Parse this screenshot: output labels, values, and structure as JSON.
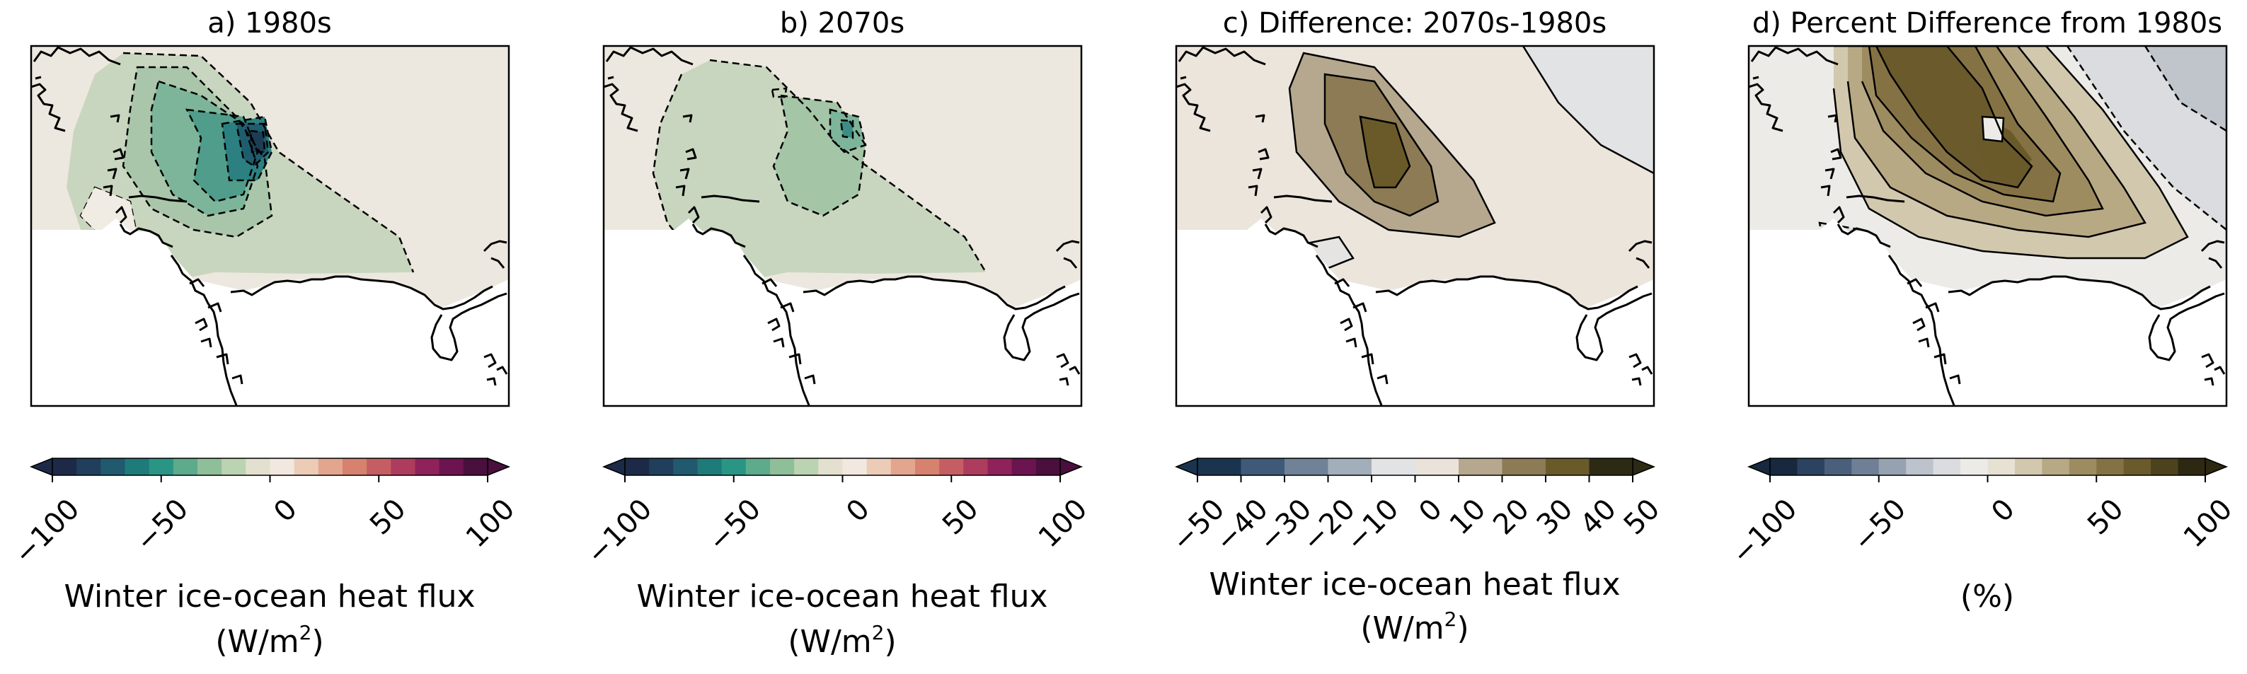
{
  "chart_data": [
    {
      "type": "heatmap",
      "title": "a) 1980s",
      "colorbar": {
        "label_line1": "Winter ice-ocean heat flux",
        "label_unit": "(W/m",
        "label_sup": "2",
        "label_close": ")",
        "range": [
          -100,
          100
        ],
        "ticks": [
          -100,
          -50,
          0,
          50,
          100
        ],
        "tick_labels": [
          "−100",
          "−50",
          "0",
          "50",
          "100"
        ],
        "extend": "both",
        "colors": [
          "#1d2a47",
          "#1f3f5c",
          "#215a6e",
          "#1f7a7a",
          "#2a9585",
          "#5eaa8c",
          "#8fbf98",
          "#bcd3b2",
          "#e3e0cf",
          "#f3e8df",
          "#eccbb7",
          "#e3a58e",
          "#d6826f",
          "#c55e63",
          "#ad3c5e",
          "#8f225a",
          "#6b1450",
          "#4a0f3d"
        ]
      },
      "field": {
        "note_values": "ice-ocean heat flux anomaly field (W/m2), contoured",
        "min_value": -95,
        "contour_levels": [
          -80,
          -65,
          -50,
          -35,
          -20
        ]
      }
    },
    {
      "type": "heatmap",
      "title": "b) 2070s",
      "colorbar": {
        "label_line1": "Winter ice-ocean heat flux",
        "label_unit": "(W/m",
        "label_sup": "2",
        "label_close": ")",
        "range": [
          -100,
          100
        ],
        "ticks": [
          -100,
          -50,
          0,
          50,
          100
        ],
        "tick_labels": [
          "−100",
          "−50",
          "0",
          "50",
          "100"
        ],
        "extend": "both",
        "colors": [
          "#1d2a47",
          "#1f3f5c",
          "#215a6e",
          "#1f7a7a",
          "#2a9585",
          "#5eaa8c",
          "#8fbf98",
          "#bcd3b2",
          "#e3e0cf",
          "#f3e8df",
          "#eccbb7",
          "#e3a58e",
          "#d6826f",
          "#c55e63",
          "#ad3c5e",
          "#8f225a",
          "#6b1450",
          "#4a0f3d"
        ]
      },
      "field": {
        "min_value": -65,
        "contour_levels": [
          -60,
          -40,
          -20
        ]
      }
    },
    {
      "type": "heatmap",
      "title": "c) Difference: 2070s-1980s",
      "colorbar": {
        "label_line1": "Winter ice-ocean heat flux",
        "label_unit": "(W/m",
        "label_sup": "2",
        "label_close": ")",
        "range": [
          -50,
          50
        ],
        "ticks": [
          -50,
          -40,
          -30,
          -20,
          -10,
          0,
          10,
          20,
          30,
          40,
          50
        ],
        "tick_labels": [
          "−50",
          "−40",
          "−30",
          "−20",
          "−10",
          "0",
          "10",
          "20",
          "30",
          "40",
          "50"
        ],
        "extend": "both",
        "colors": [
          "#1a3450",
          "#3f5a78",
          "#6f8298",
          "#a3aebb",
          "#e2e3e5",
          "#e9e3da",
          "#b5a88e",
          "#8c7b55",
          "#6a5a2a",
          "#2d2a14"
        ]
      },
      "field": {
        "max_value": 45,
        "contour_levels": [
          0,
          10,
          20,
          30
        ]
      }
    },
    {
      "type": "heatmap",
      "title": "d) Percent Difference from 1980s",
      "colorbar": {
        "label_line1": "(%)",
        "range": [
          -100,
          100
        ],
        "ticks": [
          -100,
          -50,
          0,
          50,
          100
        ],
        "tick_labels": [
          "−100",
          "−50",
          "0",
          "50",
          "100"
        ],
        "extend": "both",
        "colors": [
          "#17283f",
          "#2b4260",
          "#4a5f7c",
          "#6f7f95",
          "#97a2b1",
          "#bcc3cc",
          "#dadcdf",
          "#ecebe7",
          "#e7e1d3",
          "#d2c8ae",
          "#b8a985",
          "#9e8c61",
          "#857244",
          "#6a5a2c",
          "#4c421c",
          "#2c2812"
        ]
      },
      "field": {
        "max_value": 95,
        "contour_levels": [
          0,
          10,
          20,
          40,
          60,
          80
        ]
      }
    }
  ]
}
